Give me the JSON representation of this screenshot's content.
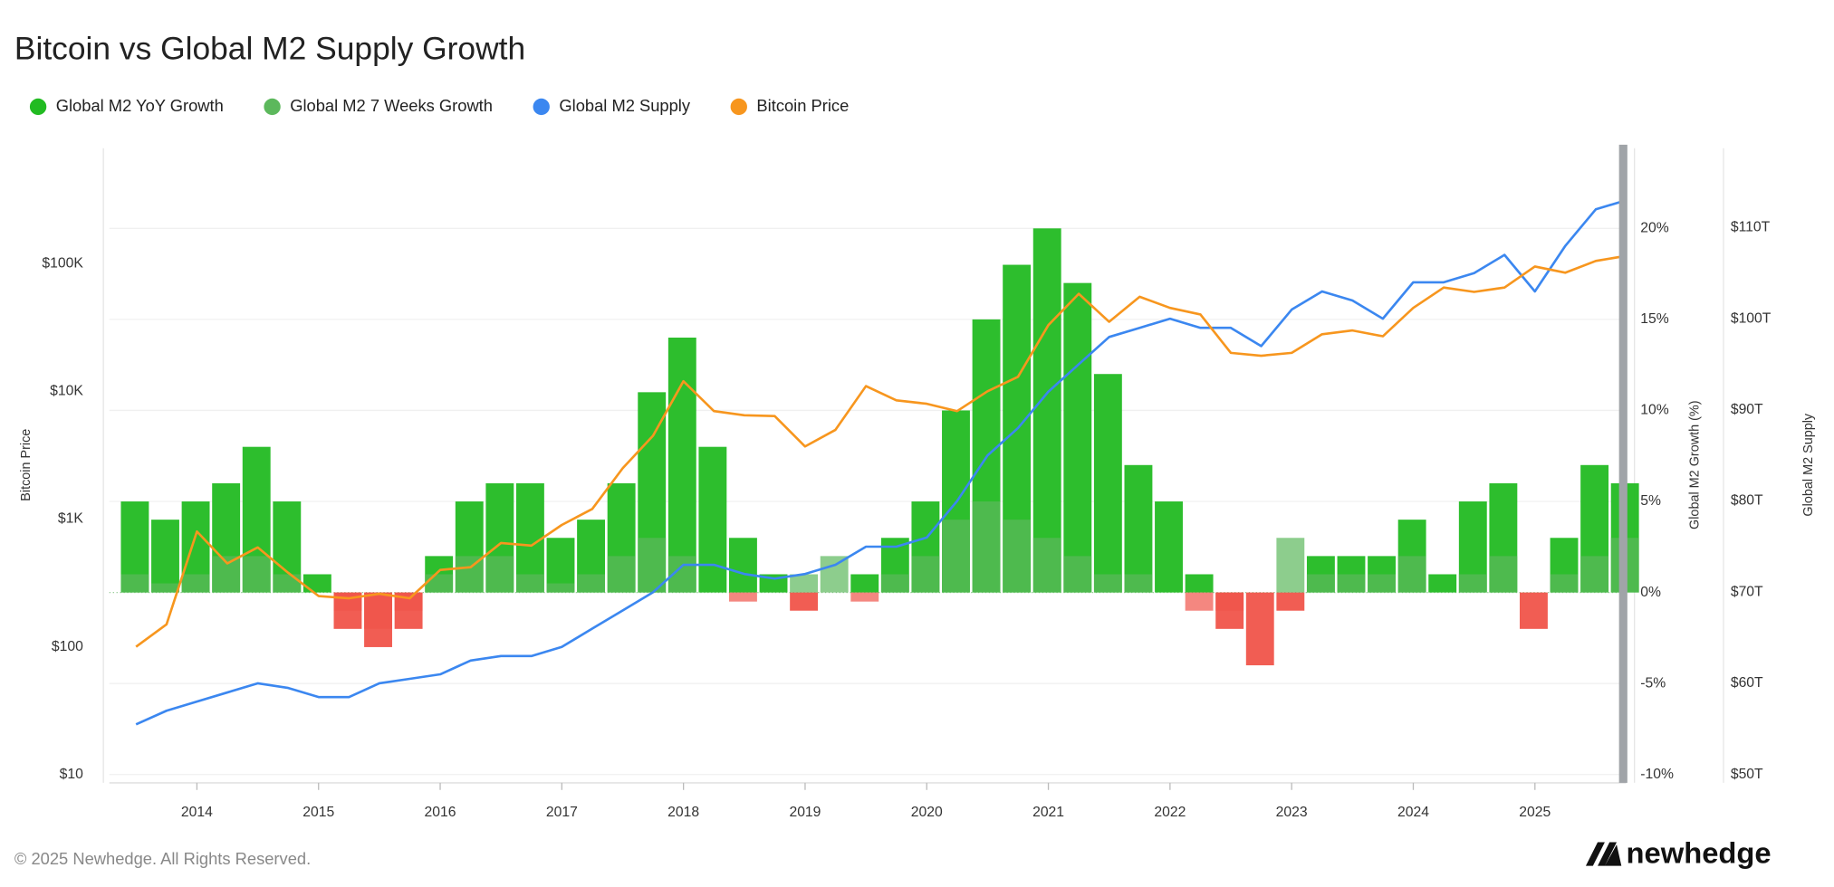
{
  "chart_data": {
    "type": "combo",
    "title": "Bitcoin vs Global M2 Supply Growth",
    "y_label": "Bitcoin Price",
    "y2_label": "Global M2 Growth (%)",
    "y3_label": "Global M2 Supply",
    "footer": "© 2025 Newhedge. All Rights Reserved.",
    "brand": "newhedge",
    "grid": true,
    "log_y": true,
    "negative_color": "#f0544a",
    "x": [
      2013.5,
      2013.75,
      2014,
      2014.25,
      2014.5,
      2014.75,
      2015,
      2015.25,
      2015.5,
      2015.75,
      2016,
      2016.25,
      2016.5,
      2016.75,
      2017,
      2017.25,
      2017.5,
      2017.75,
      2018,
      2018.25,
      2018.5,
      2018.75,
      2019,
      2019.25,
      2019.5,
      2019.75,
      2020,
      2020.25,
      2020.5,
      2020.75,
      2021,
      2021.25,
      2021.5,
      2021.75,
      2022,
      2022.25,
      2022.5,
      2022.75,
      2023,
      2023.25,
      2023.5,
      2023.75,
      2024,
      2024.25,
      2024.5,
      2024.75,
      2025,
      2025.25,
      2025.5,
      2025.75
    ],
    "xlim": [
      2013.28,
      2025.75
    ],
    "xticks": [
      2014,
      2015,
      2016,
      2017,
      2018,
      2019,
      2020,
      2021,
      2022,
      2023,
      2024,
      2025
    ],
    "ylim": [
      10,
      800000
    ],
    "yticks": [
      {
        "value": 10,
        "label": "$10"
      },
      {
        "value": 100,
        "label": "$100"
      },
      {
        "value": 1000,
        "label": "$1K"
      },
      {
        "value": 10000,
        "label": "$10K"
      },
      {
        "value": 100000,
        "label": "$100K"
      }
    ],
    "y2lim": [
      -10,
      24.4
    ],
    "y2ticks": [
      {
        "value": -10,
        "label": "-10%"
      },
      {
        "value": -5,
        "label": "-5%"
      },
      {
        "value": 0,
        "label": "0%"
      },
      {
        "value": 5,
        "label": "5%"
      },
      {
        "value": 10,
        "label": "10%"
      },
      {
        "value": 15,
        "label": "15%"
      },
      {
        "value": 20,
        "label": "20%"
      }
    ],
    "y3lim": [
      50,
      118.7
    ],
    "y3ticks": [
      {
        "value": 50,
        "label": "$50T"
      },
      {
        "value": 60,
        "label": "$60T"
      },
      {
        "value": 70,
        "label": "$70T"
      },
      {
        "value": 80,
        "label": "$80T"
      },
      {
        "value": 90,
        "label": "$90T"
      },
      {
        "value": 100,
        "label": "$100T"
      },
      {
        "value": 110,
        "label": "$110T"
      }
    ],
    "series": [
      {
        "name": "Global M2 YoY Growth",
        "type": "bar",
        "axis": "y2",
        "color": "#22bb22",
        "values": [
          5,
          4,
          5,
          6,
          8,
          5,
          1,
          -2,
          -3,
          -2,
          2,
          5,
          6,
          6,
          3,
          4,
          6,
          11,
          14,
          8,
          3,
          1,
          -1,
          0,
          1,
          3,
          5,
          10,
          15,
          18,
          20,
          17,
          12,
          7,
          5,
          1,
          -2,
          -4,
          -1,
          2,
          2,
          2,
          4,
          1,
          5,
          6,
          -2,
          3,
          7,
          6
        ]
      },
      {
        "name": "Global M2 7 Weeks Growth",
        "type": "bar",
        "axis": "y2",
        "color": "#5cb85c",
        "values": [
          1,
          0.5,
          1,
          2,
          2,
          1,
          0,
          -1,
          -2,
          -1,
          1,
          2,
          2,
          1,
          0.5,
          1,
          2,
          3,
          2,
          0,
          -0.5,
          0,
          1,
          2,
          -0.5,
          1,
          2,
          4,
          5,
          4,
          3,
          2,
          1,
          1,
          0,
          -1,
          -1,
          0,
          3,
          1,
          1,
          1,
          2,
          0,
          1,
          2,
          0,
          1,
          2,
          3
        ]
      },
      {
        "name": "Global M2 Supply",
        "type": "line",
        "axis": "y3",
        "color": "#3b87f0",
        "values": [
          55.5,
          57,
          58,
          59,
          60,
          59.5,
          58.5,
          58.5,
          60,
          60.5,
          61,
          62.5,
          63,
          63,
          64,
          66,
          68,
          70,
          73,
          73,
          72,
          71.5,
          72,
          73,
          75,
          75,
          76,
          80,
          85,
          88,
          92,
          95,
          98,
          99,
          100,
          99,
          99,
          97,
          101,
          103,
          102,
          100,
          104,
          104,
          105,
          107,
          103,
          108,
          112,
          113
        ]
      },
      {
        "name": "Bitcoin Price",
        "type": "line",
        "axis": "y",
        "color": "#f7961e",
        "values": [
          100,
          150,
          800,
          450,
          600,
          380,
          250,
          240,
          260,
          240,
          400,
          420,
          650,
          620,
          900,
          1200,
          2500,
          4500,
          12000,
          7000,
          6500,
          6400,
          3700,
          5000,
          11000,
          8500,
          8000,
          7000,
          10000,
          13000,
          33000,
          58000,
          35000,
          55000,
          45000,
          40000,
          20000,
          19000,
          20000,
          28000,
          30000,
          27000,
          45000,
          65000,
          60000,
          65000,
          95000,
          85000,
          105000,
          115000
        ]
      }
    ]
  }
}
